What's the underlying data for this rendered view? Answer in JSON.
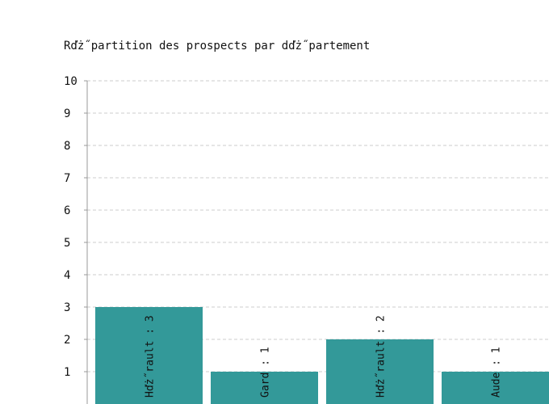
{
  "chart_data": {
    "type": "bar",
    "title": "Rďż˝partition des prospects par dďż˝partement",
    "categories": [
      "Hďż˝rault",
      "Gard",
      "Hďż˝rault",
      "Aude"
    ],
    "values": [
      3,
      1,
      2,
      1
    ],
    "bar_labels": [
      "Hďż˝rault : 3",
      "Gard : 1",
      "Hďż˝rault : 2",
      "Aude : 1"
    ],
    "ylim": [
      0,
      10
    ],
    "yticks": [
      1,
      2,
      3,
      4,
      5,
      6,
      7,
      8,
      9,
      10
    ],
    "grid": true,
    "colors": {
      "bar": "#339999",
      "grid": "#cccccc",
      "axis": "#999999"
    }
  }
}
